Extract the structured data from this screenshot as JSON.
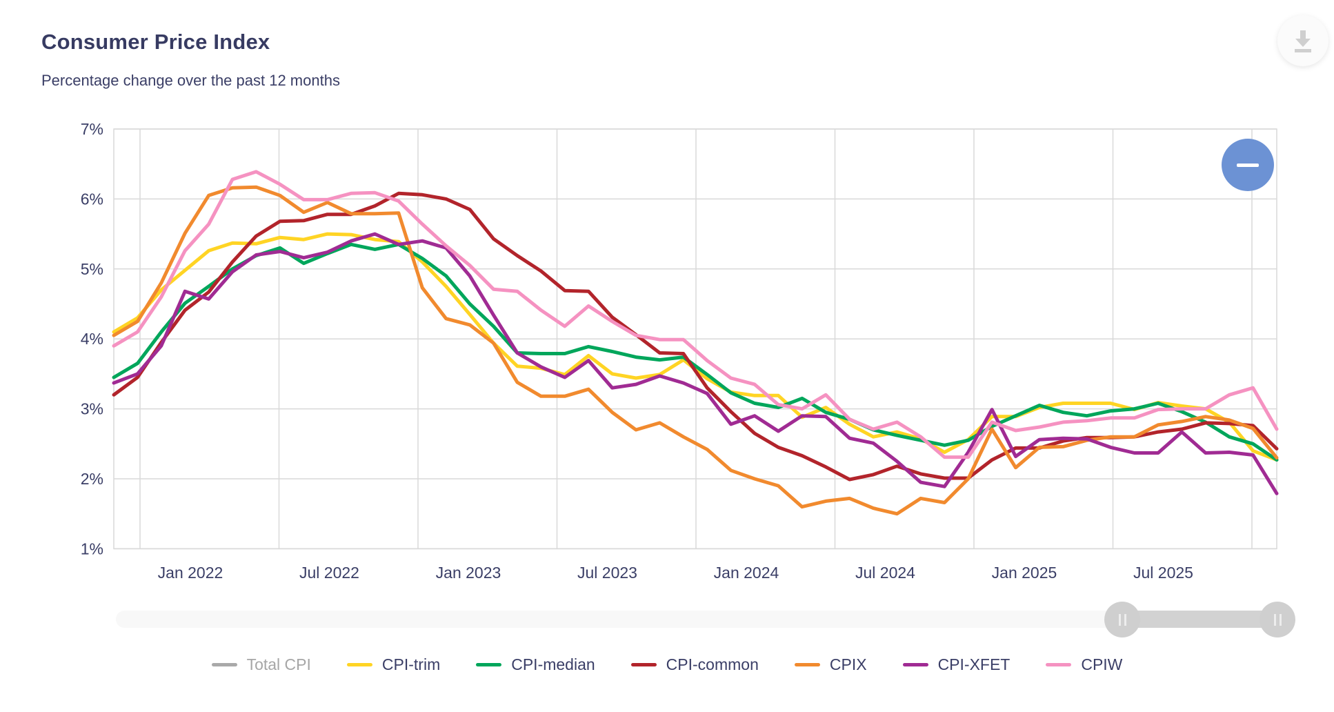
{
  "header": {
    "title": "Consumer Price Index",
    "subtitle": "Percentage change over the past 12 months"
  },
  "icons": {
    "download": "download-icon",
    "zoom_out": "minus-icon",
    "nav_handles": "grip-lines-icon"
  },
  "colors": {
    "title_text": "#373B62",
    "axis_text": "#3A3E66",
    "gridline": "#D9D9D9",
    "zoom_button_blue": "#6C92D4",
    "disabled_legend": "#A6A6A6",
    "total_cpi": "#A9A9A9",
    "cpi_trim": "#FFD424",
    "cpi_median": "#00A65B",
    "cpi_common": "#B2242B",
    "cpix": "#F18A2E",
    "cpi_xfet": "#A02B93",
    "cpiw": "#F592C1"
  },
  "chart_data": {
    "type": "line",
    "title": "Consumer Price Index",
    "xlabel": "",
    "ylabel": "Percentage change over the past 12 months",
    "ylim": [
      1,
      7
    ],
    "grid": true,
    "legend_position": "bottom",
    "yticks": [
      "7%",
      "6%",
      "5%",
      "4%",
      "3%",
      "2%",
      "1%"
    ],
    "xticks": [
      "Jan 2022",
      "Jul 2022",
      "Jan 2023",
      "Jul 2023",
      "Jan 2024",
      "Jul 2024",
      "Jan 2025",
      "Jul 2025"
    ],
    "categories": [
      "Oct 2021",
      "Nov 2021",
      "Dec 2021",
      "Jan 2022",
      "Feb 2022",
      "Mar 2022",
      "Apr 2022",
      "May 2022",
      "Jun 2022",
      "Jul 2022",
      "Aug 2022",
      "Sep 2022",
      "Oct 2022",
      "Nov 2022",
      "Dec 2022",
      "Jan 2023",
      "Feb 2023",
      "Mar 2023",
      "Apr 2023",
      "May 2023",
      "Jun 2023",
      "Jul 2023",
      "Aug 2023",
      "Sep 2023",
      "Oct 2023",
      "Nov 2023",
      "Dec 2023",
      "Jan 2024",
      "Feb 2024",
      "Mar 2024",
      "Apr 2024",
      "May 2024",
      "Jun 2024",
      "Jul 2024",
      "Aug 2024",
      "Sep 2024",
      "Oct 2024",
      "Nov 2024",
      "Dec 2024",
      "Jan 2025",
      "Feb 2025",
      "Mar 2025",
      "Apr 2025",
      "May 2025",
      "Jun 2025",
      "Jul 2025",
      "Aug 2025",
      "Sep 2025",
      "Oct 2025",
      "Nov 2025"
    ],
    "series": [
      {
        "name": "Total CPI",
        "color": "#A9A9A9",
        "hidden": true,
        "values": []
      },
      {
        "name": "CPI-trim",
        "color": "#FFD424",
        "hidden": false,
        "values": [
          4.1,
          4.3,
          4.7,
          4.98,
          5.26,
          5.37,
          5.36,
          5.45,
          5.42,
          5.5,
          5.49,
          5.42,
          5.39,
          5.1,
          4.75,
          4.35,
          3.94,
          3.61,
          3.58,
          3.49,
          3.76,
          3.5,
          3.44,
          3.49,
          3.7,
          3.43,
          3.24,
          3.19,
          3.19,
          2.88,
          3.02,
          2.78,
          2.6,
          2.67,
          2.57,
          2.38,
          2.56,
          2.89,
          2.89,
          3.02,
          3.08,
          3.08,
          3.08,
          2.99,
          3.09,
          3.04,
          3.0,
          2.81,
          2.4,
          2.27
        ]
      },
      {
        "name": "CPI-median",
        "color": "#00A65B",
        "hidden": false,
        "values": [
          3.45,
          3.65,
          4.1,
          4.51,
          4.75,
          5.0,
          5.19,
          5.3,
          5.08,
          5.22,
          5.35,
          5.28,
          5.35,
          5.15,
          4.9,
          4.5,
          4.18,
          3.8,
          3.79,
          3.79,
          3.89,
          3.82,
          3.74,
          3.7,
          3.74,
          3.49,
          3.23,
          3.08,
          3.02,
          3.15,
          2.95,
          2.85,
          2.7,
          2.62,
          2.55,
          2.48,
          2.55,
          2.75,
          2.9,
          3.05,
          2.95,
          2.9,
          2.97,
          3.0,
          3.08,
          2.96,
          2.81,
          2.6,
          2.5,
          2.27
        ]
      },
      {
        "name": "CPI-common",
        "color": "#B2242B",
        "hidden": false,
        "values": [
          3.2,
          3.45,
          3.95,
          4.41,
          4.67,
          5.1,
          5.47,
          5.68,
          5.69,
          5.78,
          5.78,
          5.9,
          6.08,
          6.06,
          6.0,
          5.85,
          5.43,
          5.19,
          4.97,
          4.69,
          4.68,
          4.31,
          4.06,
          3.8,
          3.79,
          3.3,
          2.96,
          2.65,
          2.45,
          2.33,
          2.17,
          1.99,
          2.06,
          2.18,
          2.07,
          2.01,
          2.01,
          2.27,
          2.44,
          2.44,
          2.54,
          2.59,
          2.59,
          2.6,
          2.67,
          2.71,
          2.8,
          2.79,
          2.76,
          2.43
        ]
      },
      {
        "name": "CPIX",
        "color": "#F18A2E",
        "hidden": false,
        "values": [
          4.05,
          4.25,
          4.8,
          5.51,
          6.05,
          6.16,
          6.17,
          6.05,
          5.81,
          5.95,
          5.79,
          5.79,
          5.8,
          4.73,
          4.29,
          4.2,
          3.94,
          3.38,
          3.18,
          3.18,
          3.28,
          2.95,
          2.7,
          2.8,
          2.6,
          2.42,
          2.12,
          2.0,
          1.9,
          1.6,
          1.68,
          1.72,
          1.58,
          1.5,
          1.72,
          1.66,
          2.0,
          2.71,
          2.16,
          2.45,
          2.46,
          2.55,
          2.6,
          2.6,
          2.77,
          2.82,
          2.89,
          2.84,
          2.72,
          2.3
        ]
      },
      {
        "name": "CPI-XFET",
        "color": "#A02B93",
        "hidden": false,
        "values": [
          3.37,
          3.5,
          3.9,
          4.68,
          4.57,
          4.96,
          5.2,
          5.25,
          5.16,
          5.24,
          5.4,
          5.5,
          5.35,
          5.4,
          5.3,
          4.9,
          4.34,
          3.8,
          3.6,
          3.45,
          3.69,
          3.3,
          3.35,
          3.47,
          3.37,
          3.22,
          2.78,
          2.9,
          2.68,
          2.9,
          2.89,
          2.58,
          2.51,
          2.25,
          1.95,
          1.89,
          2.38,
          2.99,
          2.32,
          2.56,
          2.58,
          2.57,
          2.45,
          2.37,
          2.37,
          2.67,
          2.37,
          2.38,
          2.34,
          1.79
        ]
      },
      {
        "name": "CPIW",
        "color": "#F592C1",
        "hidden": false,
        "values": [
          3.9,
          4.1,
          4.6,
          5.26,
          5.64,
          6.28,
          6.39,
          6.21,
          5.99,
          5.99,
          6.08,
          6.09,
          5.97,
          5.64,
          5.33,
          5.05,
          4.71,
          4.68,
          4.41,
          4.18,
          4.47,
          4.25,
          4.05,
          3.99,
          3.99,
          3.69,
          3.44,
          3.35,
          3.06,
          3.0,
          3.2,
          2.85,
          2.71,
          2.81,
          2.6,
          2.31,
          2.31,
          2.81,
          2.69,
          2.74,
          2.81,
          2.83,
          2.87,
          2.87,
          2.99,
          3.0,
          3.0,
          3.2,
          3.3,
          2.71
        ]
      }
    ]
  }
}
